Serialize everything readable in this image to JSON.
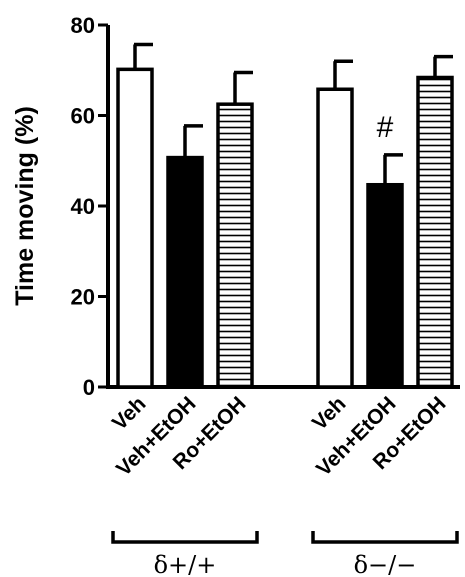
{
  "chart_data": {
    "type": "bar",
    "ylabel": "Time moving (%)",
    "ylim": [
      0,
      80
    ],
    "yticks": [
      "0",
      "20",
      "40",
      "60",
      "80"
    ],
    "groups": [
      {
        "label": "δ+/+",
        "bars": [
          {
            "category": "Veh",
            "value": 70.2,
            "error": 5.5,
            "fill": "white"
          },
          {
            "category": "Veh+EtOH",
            "value": 50.7,
            "error": 7.0,
            "fill": "black"
          },
          {
            "category": "Ro+EtOH",
            "value": 62.5,
            "error": 7.0,
            "fill": "horizontal-stripes"
          }
        ]
      },
      {
        "label": "δ−/−",
        "bars": [
          {
            "category": "Veh",
            "value": 65.8,
            "error": 6.2,
            "fill": "white"
          },
          {
            "category": "Veh+EtOH",
            "value": 44.7,
            "error": 6.6,
            "fill": "black",
            "annotation": "#"
          },
          {
            "category": "Ro+EtOH",
            "value": 68.4,
            "error": 4.6,
            "fill": "horizontal-stripes"
          }
        ]
      }
    ]
  }
}
